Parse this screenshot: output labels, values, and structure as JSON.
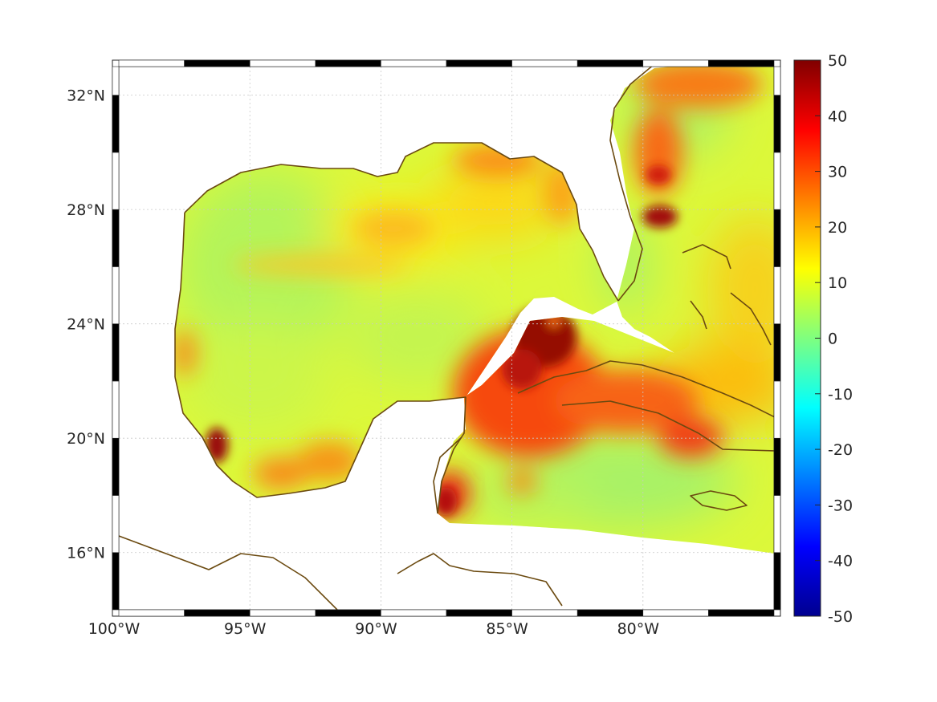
{
  "map": {
    "lon_range": [
      -100,
      -75
    ],
    "lat_range": [
      14,
      33
    ],
    "x_ticks": [
      {
        "value": -100,
        "label": "100°W"
      },
      {
        "value": -95,
        "label": "95°W"
      },
      {
        "value": -90,
        "label": "90°W"
      },
      {
        "value": -85,
        "label": "85°W"
      },
      {
        "value": -80,
        "label": "80°W"
      }
    ],
    "y_ticks": [
      {
        "value": 16,
        "label": "16°N"
      },
      {
        "value": 20,
        "label": "20°N"
      },
      {
        "value": 24,
        "label": "24°N"
      },
      {
        "value": 28,
        "label": "28°N"
      },
      {
        "value": 32,
        "label": "32°N"
      }
    ],
    "grid": true,
    "coastline_color": "#6b4a10",
    "land_color": "#ffffff"
  },
  "colorbar": {
    "range": [
      -50,
      50
    ],
    "colormap": "jet",
    "ticks": [
      {
        "value": 50,
        "label": "50"
      },
      {
        "value": 40,
        "label": "40"
      },
      {
        "value": 30,
        "label": "30"
      },
      {
        "value": 20,
        "label": "20"
      },
      {
        "value": 10,
        "label": "10"
      },
      {
        "value": 0,
        "label": "0"
      },
      {
        "value": -10,
        "label": "-10"
      },
      {
        "value": -20,
        "label": "-20"
      },
      {
        "value": -30,
        "label": "-30"
      },
      {
        "value": -40,
        "label": "-40"
      },
      {
        "value": -50,
        "label": "-50"
      }
    ]
  }
}
